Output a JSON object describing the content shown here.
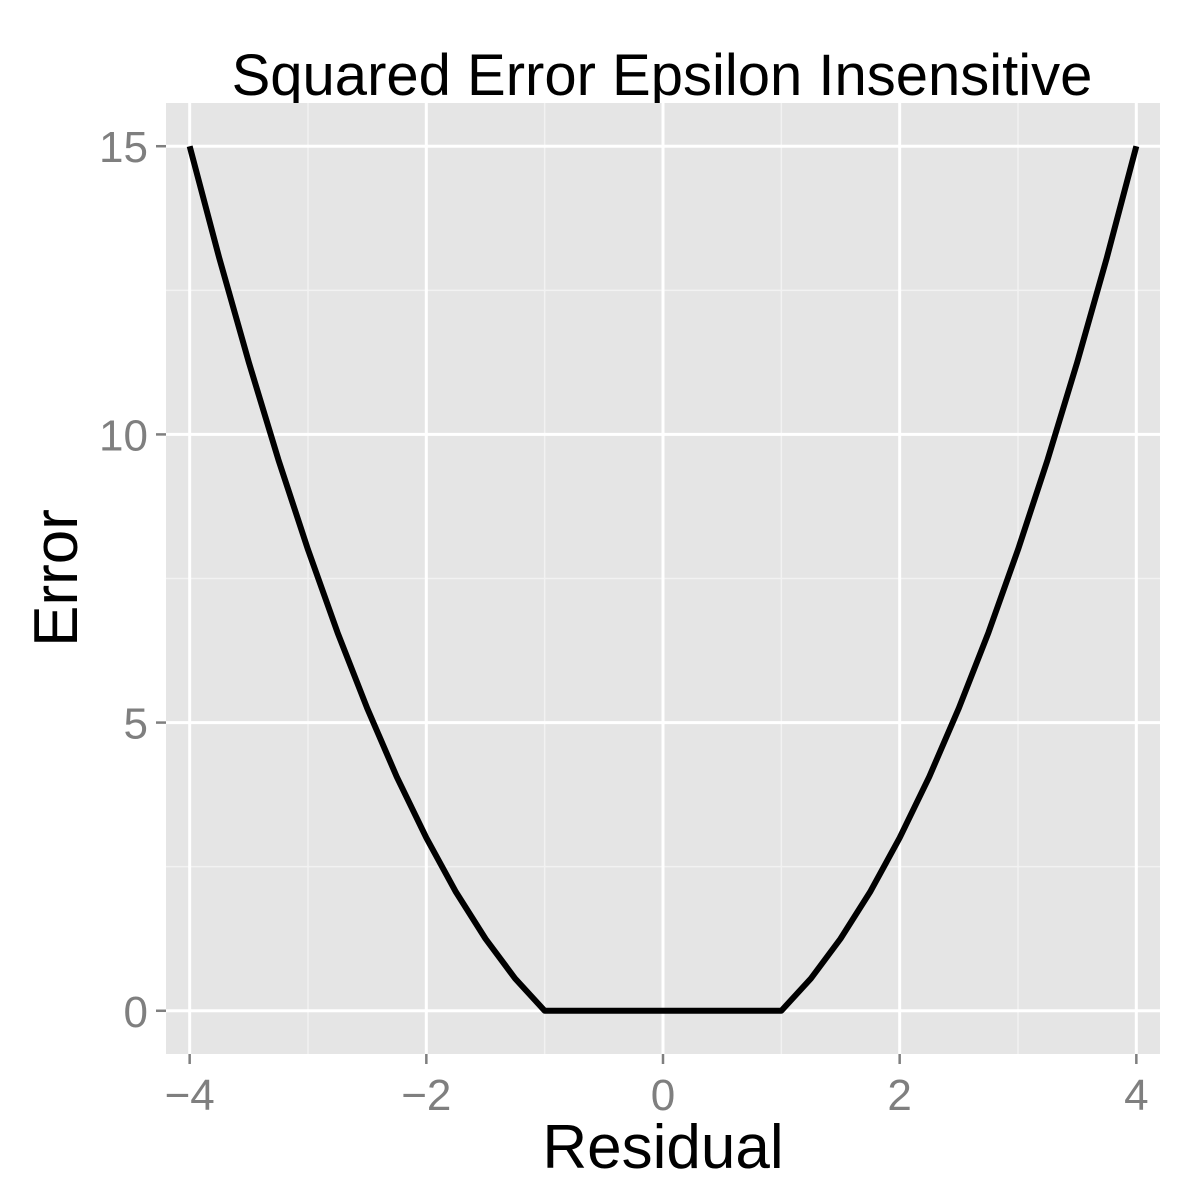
{
  "chart_data": {
    "type": "line",
    "title": "Squared Error Epsilon Insensitive",
    "xlabel": "Residual",
    "ylabel": "Error",
    "xlim": [
      -4.2,
      4.2
    ],
    "ylim": [
      -0.75,
      15.75
    ],
    "xticks": [
      -4,
      -2,
      0,
      2,
      4
    ],
    "xtick_labels": [
      "−4",
      "−2",
      "0",
      "2",
      "4"
    ],
    "yticks": [
      0,
      5,
      10,
      15
    ],
    "ytick_labels": [
      "0",
      "5",
      "10",
      "15"
    ],
    "grid": true,
    "legend": "none",
    "series": [
      {
        "x": [
          -4,
          -3.75,
          -3.5,
          -3.25,
          -3,
          -2.75,
          -2.5,
          -2.25,
          -2,
          -1.75,
          -1.5,
          -1.25,
          -1,
          0,
          1,
          1.25,
          1.5,
          1.75,
          2,
          2.25,
          2.5,
          2.75,
          3,
          3.25,
          3.5,
          3.75,
          4
        ],
        "y": [
          15,
          13.06,
          11.25,
          9.56,
          8,
          6.56,
          5.25,
          4.06,
          3,
          2.06,
          1.25,
          0.56,
          0,
          0,
          0,
          0.56,
          1.25,
          2.06,
          3,
          4.06,
          5.25,
          6.56,
          8,
          9.56,
          11.25,
          13.06,
          15
        ],
        "color": "#000000"
      }
    ]
  },
  "colors": {
    "panel_background": "#e5e5e5",
    "grid_major": "#ffffff",
    "grid_minor": "#f2f2f2",
    "tick_text": "#7f7f7f",
    "line": "#000000"
  }
}
